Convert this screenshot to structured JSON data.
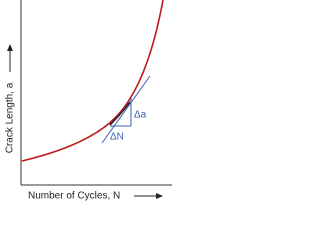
{
  "axes": {
    "y_label": "Crack Length, a",
    "x_label": "Number of Cycles, N"
  },
  "annotations": {
    "delta_a": "Δa",
    "delta_n": "ΔN"
  }
}
